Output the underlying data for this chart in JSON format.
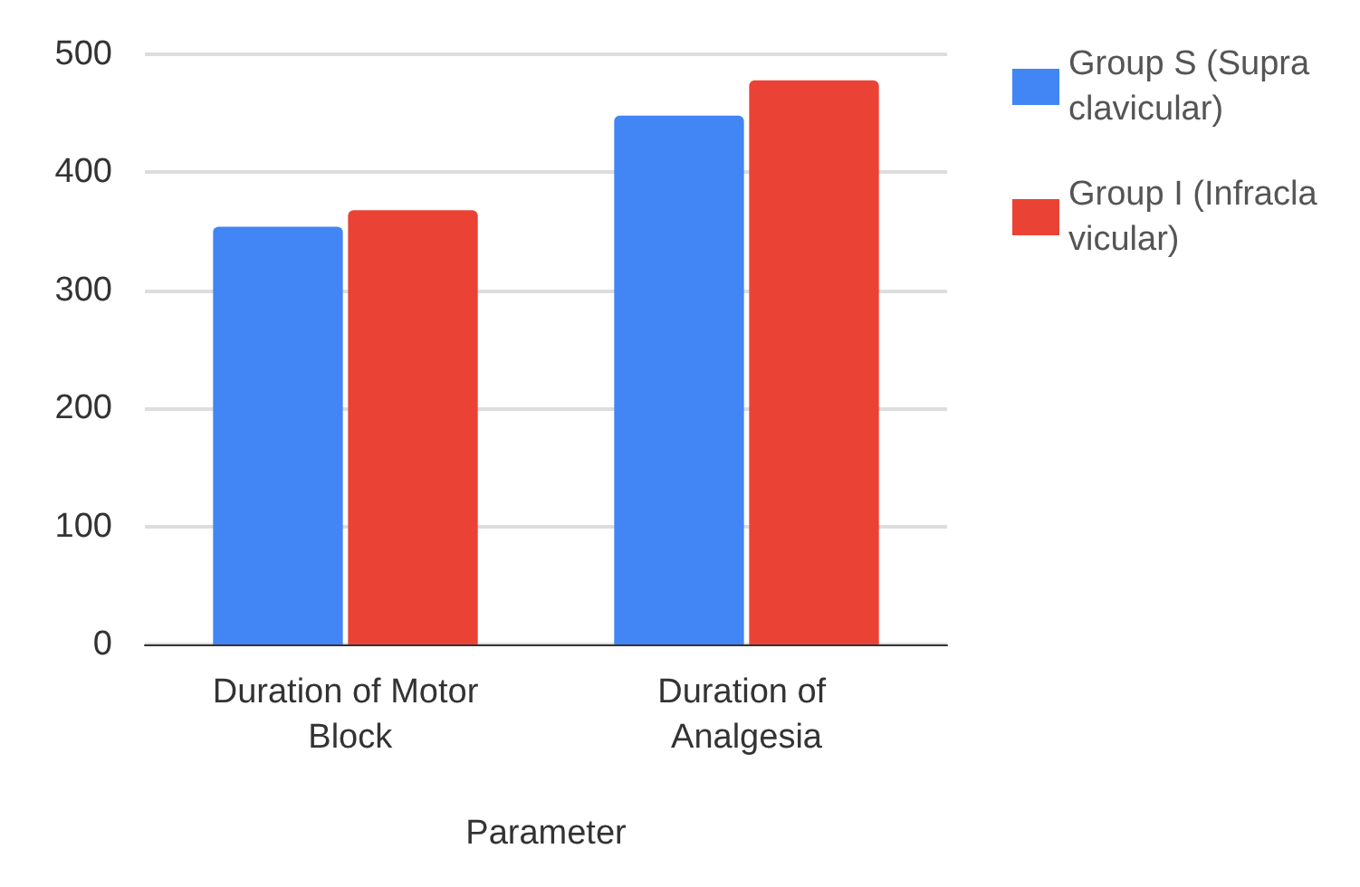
{
  "chart_data": {
    "type": "bar",
    "xlabel": "Parameter",
    "categories": [
      "Duration of Motor Block",
      "Duration of Analgesia"
    ],
    "series": [
      {
        "name": "Group S (Supraclavicular)",
        "color": "#4285f4",
        "values": [
          354,
          448
        ]
      },
      {
        "name": "Group I (Infraclavicular)",
        "color": "#ea4335",
        "values": [
          368,
          478
        ]
      }
    ],
    "ylim": [
      0,
      500
    ],
    "yticks": [
      0,
      100,
      200,
      300,
      400,
      500
    ],
    "grid": "y",
    "legend": "top right"
  }
}
